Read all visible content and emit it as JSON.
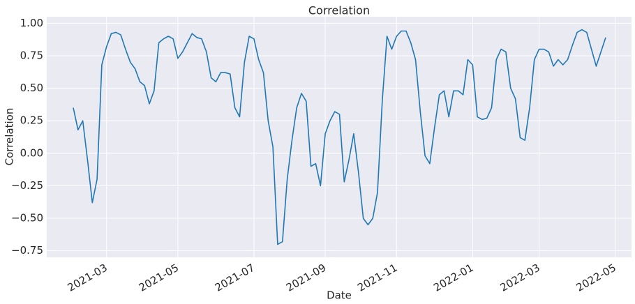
{
  "chart_data": {
    "type": "line",
    "title": "Correlation",
    "x_label": "Date",
    "y_label": "Correlation",
    "categories": [
      null,
      null,
      null,
      null,
      null,
      null,
      null,
      "2021-03",
      null,
      null,
      null,
      null,
      null,
      null,
      null,
      null,
      null,
      null,
      null,
      null,
      null,
      null,
      "2021-05",
      null,
      null,
      null,
      null,
      null,
      null,
      null,
      null,
      null,
      null,
      null,
      null,
      null,
      null,
      null,
      "2021-07",
      null,
      null,
      null,
      null,
      null,
      null,
      null,
      null,
      null,
      null,
      null,
      null,
      null,
      null,
      "2021-09",
      null,
      null,
      null,
      null,
      null,
      null,
      null,
      null,
      null,
      null,
      null,
      null,
      null,
      null,
      "2021-11",
      null,
      null,
      null,
      null,
      null,
      null,
      null,
      null,
      null,
      null,
      null,
      null,
      null,
      null,
      null,
      "2022-01",
      null,
      null,
      null,
      null,
      null,
      null,
      null,
      null,
      null,
      null,
      null,
      null,
      null,
      "2022-03",
      null,
      null,
      null,
      null,
      null,
      null,
      null,
      null,
      null,
      null,
      null,
      null,
      null,
      null,
      null,
      "2022-05"
    ],
    "values": [
      0.35,
      0.18,
      0.25,
      -0.05,
      -0.38,
      -0.2,
      0.68,
      0.82,
      0.92,
      0.93,
      0.91,
      0.8,
      0.7,
      0.65,
      0.55,
      0.52,
      0.38,
      0.48,
      0.85,
      0.88,
      0.9,
      0.88,
      0.73,
      0.78,
      0.85,
      0.92,
      0.89,
      0.88,
      0.78,
      0.58,
      0.55,
      0.62,
      0.62,
      0.61,
      0.35,
      0.28,
      0.7,
      0.9,
      0.88,
      0.72,
      0.62,
      0.25,
      0.05,
      -0.7,
      -0.68,
      -0.2,
      0.1,
      0.35,
      0.46,
      0.4,
      -0.1,
      -0.08,
      -0.25,
      0.15,
      0.25,
      0.32,
      0.3,
      -0.22,
      -0.05,
      0.15,
      -0.15,
      -0.5,
      -0.55,
      -0.5,
      -0.3,
      0.4,
      0.9,
      0.8,
      0.9,
      0.94,
      0.94,
      0.85,
      0.72,
      0.32,
      -0.02,
      -0.08,
      0.2,
      0.45,
      0.48,
      0.28,
      0.48,
      0.48,
      0.45,
      0.72,
      0.68,
      0.28,
      0.26,
      0.27,
      0.35,
      0.72,
      0.8,
      0.78,
      0.5,
      0.42,
      0.12,
      0.1,
      0.35,
      0.72,
      0.8,
      0.8,
      0.78,
      0.67,
      0.72,
      0.68,
      0.72,
      0.83,
      0.93,
      0.95,
      0.93,
      0.8,
      0.67,
      0.78,
      0.89,
      null,
      null
    ],
    "color": "#1f77b4",
    "ylim": [
      -0.8,
      1.05
    ],
    "yticks": [
      {
        "value": -0.75,
        "label": "−0.75"
      },
      {
        "value": -0.5,
        "label": "−0.50"
      },
      {
        "value": -0.25,
        "label": "−0.25"
      },
      {
        "value": 0,
        "label": "0.00"
      },
      {
        "value": 0.25,
        "label": "0.25"
      },
      {
        "value": 0.5,
        "label": "0.50"
      },
      {
        "value": 0.75,
        "label": "0.75"
      },
      {
        "value": 1,
        "label": "1.00"
      }
    ],
    "grid": true
  }
}
